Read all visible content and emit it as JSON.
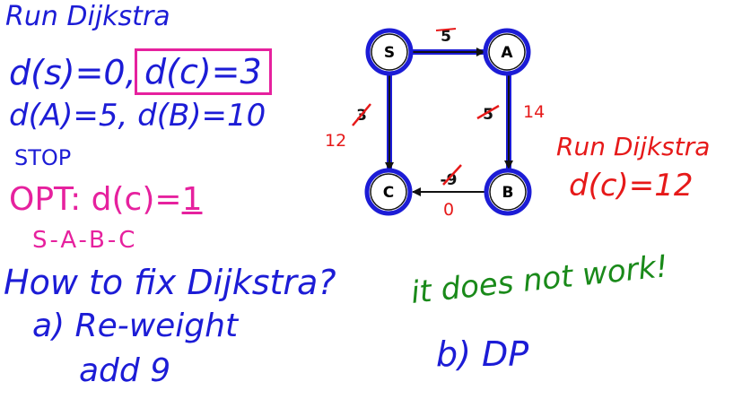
{
  "left_notes": {
    "run_title": "Run Dijkstra",
    "d_s": "d(s)=0,",
    "d_c_boxed": "d(c)=3",
    "d_a_b": "d(A)=5, d(B)=10",
    "stop": "STOP",
    "opt_prefix": "OPT: d(c)=",
    "opt_value": "1",
    "opt_path": "S-A-B-C"
  },
  "graph": {
    "nodes": {
      "s": "S",
      "a": "A",
      "b": "B",
      "c": "C"
    },
    "weights": {
      "s_a": "5",
      "a_b_old": "5",
      "a_b_new": "14",
      "s_c_old": "3",
      "s_c_new": "12",
      "b_c_old": "-9",
      "b_c_new": "0"
    }
  },
  "right_notes": {
    "run_title": "Run Dijkstra",
    "result": "d(c)=12"
  },
  "bottom_notes": {
    "question": "How to fix Dijkstra?",
    "option_a": "a) Re-weight",
    "option_a_detail": "add 9",
    "option_b": "b) DP",
    "verdict": "it does not work!"
  },
  "colors": {
    "ink_blue": "#1c1cd6",
    "ink_magenta": "#e6219e",
    "ink_red": "#e61919",
    "ink_green": "#1a8a1a"
  }
}
